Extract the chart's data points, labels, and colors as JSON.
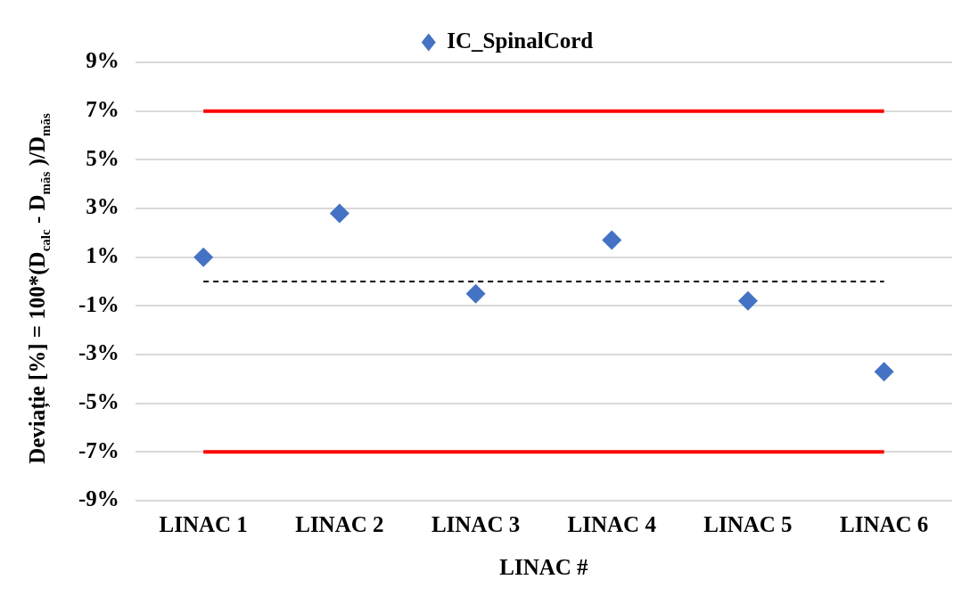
{
  "chart_data": {
    "type": "scatter",
    "categories": [
      "LINAC 1",
      "LINAC 2",
      "LINAC 3",
      "LINAC 4",
      "LINAC 5",
      "LINAC 6"
    ],
    "series": [
      {
        "name": "IC_SpinalCord",
        "color": "#4472c4",
        "values": [
          1.0,
          2.8,
          -0.5,
          1.7,
          -0.8,
          -3.7
        ]
      }
    ],
    "xlabel": "LINAC #",
    "ylabel": "Deviație [%] = 100*(D$_{calc}$ - D$_{măs}$ )/D$_{măs}$",
    "ylim": [
      -9,
      9
    ],
    "yticks": [
      {
        "value": -9,
        "label": "-9%"
      },
      {
        "value": -7,
        "label": "-7%"
      },
      {
        "value": -5,
        "label": "-5%"
      },
      {
        "value": -3,
        "label": "-3%"
      },
      {
        "value": -1,
        "label": "-1%"
      },
      {
        "value": 1,
        "label": "1%"
      },
      {
        "value": 3,
        "label": "3%"
      },
      {
        "value": 5,
        "label": "5%"
      },
      {
        "value": 7,
        "label": "7%"
      },
      {
        "value": 9,
        "label": "9%"
      }
    ],
    "ref_lines": [
      {
        "axis": "y",
        "value": 7,
        "color": "#ff0000",
        "line_style": "solid"
      },
      {
        "axis": "y",
        "value": -7,
        "color": "#ff0000",
        "line_style": "solid"
      },
      {
        "axis": "y",
        "value": 0,
        "color": "#000000",
        "line_style": "dashed"
      }
    ],
    "grid": "y",
    "legend": "top",
    "marker": "diamond"
  }
}
